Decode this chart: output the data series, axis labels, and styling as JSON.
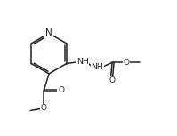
{
  "bg": "#ffffff",
  "lc": "#222222",
  "lw": 1.1,
  "fs": 7.0,
  "dpi": 100,
  "figw": 1.99,
  "figh": 1.53,
  "xlim": [
    0,
    10
  ],
  "ylim": [
    0,
    7.65
  ]
}
